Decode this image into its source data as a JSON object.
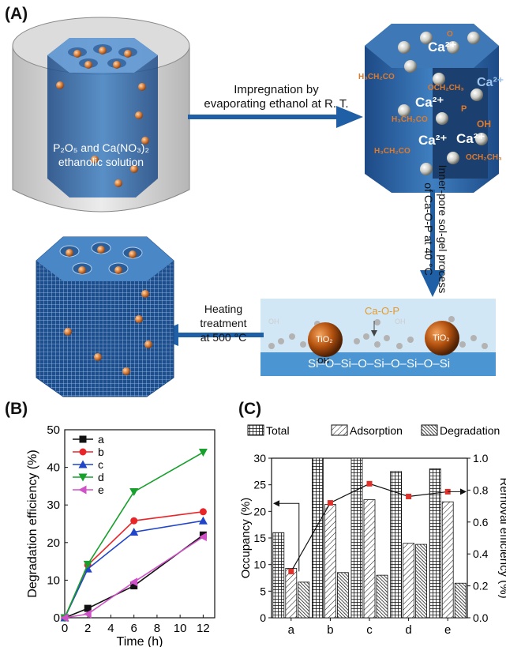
{
  "panels": {
    "a": "(A)",
    "b": "(B)",
    "c": "(C)"
  },
  "schematic": {
    "beaker_text_line1": "P₂O₅ and Ca(NO₃)₂",
    "beaker_text_line2": "ethanolic solution",
    "arrow1_line1": "Impregnation by",
    "arrow1_line2": "evaporating ethanol at R. T.",
    "arrow2_line1": "Inner-pore sol-gel process",
    "arrow2_line2": "of Ca-O-P at 40 °C",
    "arrow3_line1": "Heating treatment",
    "arrow3_line2": "at 500 °C",
    "ca_ion": "Ca²⁺",
    "groups": {
      "oh": "OH",
      "o": "O",
      "p": "P",
      "h3ch2co": "H₃CH₂CO",
      "och2ch3": "OCH₂CH₃"
    },
    "cao_p": "Ca-O-P",
    "tio2": "TiO₂",
    "surface_oh": "OH",
    "chain": "Si–O–Si–O–Si–O–Si–O–Si"
  },
  "chart_data": [
    {
      "type": "line",
      "xlabel": "Time (h)",
      "ylabel": "Degradation efficiency (%)",
      "xlim": [
        0,
        13
      ],
      "ylim": [
        0,
        50
      ],
      "xticks": [
        0,
        2,
        4,
        6,
        8,
        10,
        12
      ],
      "yticks": [
        0,
        10,
        20,
        30,
        40,
        50
      ],
      "x": [
        0,
        2,
        6,
        12
      ],
      "legend_position": "top-left",
      "series": [
        {
          "name": "a",
          "values": [
            0,
            2.5,
            8.5,
            22
          ],
          "color": "#111111",
          "marker": "square"
        },
        {
          "name": "b",
          "values": [
            0,
            14,
            25.8,
            28.2
          ],
          "color": "#e8262a",
          "marker": "circle"
        },
        {
          "name": "c",
          "values": [
            0,
            13,
            22.8,
            25.8
          ],
          "color": "#2145c8",
          "marker": "triangle-up"
        },
        {
          "name": "d",
          "values": [
            0,
            14.2,
            33.5,
            44
          ],
          "color": "#17a02b",
          "marker": "triangle-down"
        },
        {
          "name": "e",
          "values": [
            0,
            1,
            9.5,
            21.5
          ],
          "color": "#d052c8",
          "marker": "triangle-left"
        }
      ]
    },
    {
      "type": "bar",
      "ylabel": "Occupancy (%)",
      "y2label": "Removal efficiency (%)",
      "categories": [
        "a",
        "b",
        "c",
        "d",
        "e"
      ],
      "ylim": [
        0,
        30
      ],
      "y2lim": [
        0.0,
        1.0
      ],
      "yticks": [
        0,
        5,
        10,
        15,
        20,
        25,
        30
      ],
      "y2ticks": [
        "0.0",
        "0.2",
        "0.4",
        "0.6",
        "0.8",
        "1.0"
      ],
      "legend_position": "top",
      "series": [
        {
          "name": "Total",
          "values": [
            16,
            30,
            30,
            27.5,
            28
          ],
          "pattern": "crosshatch"
        },
        {
          "name": "Adsorption",
          "values": [
            9.3,
            21.3,
            22.2,
            14,
            21.8
          ],
          "pattern": "diagonal"
        },
        {
          "name": "Degradation",
          "values": [
            6.7,
            8.5,
            8,
            13.8,
            6.5
          ],
          "pattern": "dense-diagonal"
        }
      ],
      "line_series": {
        "name": "Removal efficiency",
        "axis": "right",
        "values": [
          0.29,
          0.72,
          0.84,
          0.76,
          0.79
        ],
        "color": "#e0302a"
      }
    }
  ]
}
